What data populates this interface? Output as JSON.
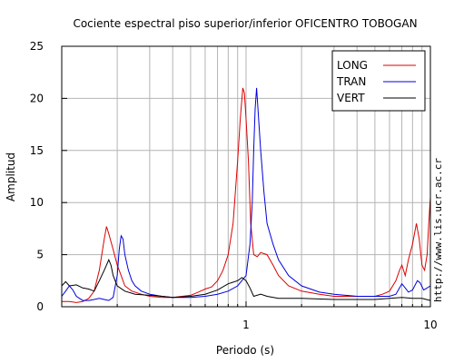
{
  "chart_data": {
    "type": "line",
    "title": "Cociente espectral piso superior/inferior OFICENTRO TOBOGAN",
    "xlabel": "Periodo (s)",
    "ylabel": "Amplitud",
    "x_scale": "log",
    "xlim": [
      0.1,
      10
    ],
    "ylim": [
      0,
      25
    ],
    "x_ticks": [
      1,
      10
    ],
    "x_tick_labels": [
      "1",
      "10"
    ],
    "y_ticks": [
      0,
      5,
      10,
      15,
      20,
      25
    ],
    "y_tick_labels": [
      "0",
      "5",
      "10",
      "15",
      "20",
      "25"
    ],
    "grid": true,
    "legend_position": "top-right",
    "series": [
      {
        "name": "LONG",
        "color": "#dd0000",
        "points": [
          [
            0.1,
            0.5
          ],
          [
            0.11,
            0.5
          ],
          [
            0.12,
            0.4
          ],
          [
            0.13,
            0.5
          ],
          [
            0.14,
            0.8
          ],
          [
            0.15,
            1.5
          ],
          [
            0.16,
            3.5
          ],
          [
            0.17,
            6.5
          ],
          [
            0.175,
            7.7
          ],
          [
            0.18,
            7.0
          ],
          [
            0.19,
            5.5
          ],
          [
            0.2,
            4.0
          ],
          [
            0.21,
            3.0
          ],
          [
            0.22,
            2.0
          ],
          [
            0.24,
            1.5
          ],
          [
            0.27,
            1.2
          ],
          [
            0.3,
            1.0
          ],
          [
            0.35,
            0.9
          ],
          [
            0.4,
            0.9
          ],
          [
            0.45,
            1.0
          ],
          [
            0.5,
            1.1
          ],
          [
            0.55,
            1.4
          ],
          [
            0.6,
            1.7
          ],
          [
            0.65,
            1.9
          ],
          [
            0.7,
            2.5
          ],
          [
            0.75,
            3.5
          ],
          [
            0.8,
            5.0
          ],
          [
            0.85,
            8.0
          ],
          [
            0.9,
            14.0
          ],
          [
            0.93,
            18.0
          ],
          [
            0.96,
            21.0
          ],
          [
            0.98,
            20.5
          ],
          [
            1.0,
            18.0
          ],
          [
            1.03,
            14.0
          ],
          [
            1.06,
            8.0
          ],
          [
            1.1,
            5.0
          ],
          [
            1.15,
            4.8
          ],
          [
            1.2,
            5.2
          ],
          [
            1.3,
            5.0
          ],
          [
            1.4,
            4.0
          ],
          [
            1.5,
            3.0
          ],
          [
            1.7,
            2.0
          ],
          [
            2.0,
            1.5
          ],
          [
            2.5,
            1.2
          ],
          [
            3.0,
            1.0
          ],
          [
            4.0,
            1.0
          ],
          [
            5.0,
            1.0
          ],
          [
            5.5,
            1.2
          ],
          [
            6.0,
            1.5
          ],
          [
            6.5,
            2.5
          ],
          [
            6.8,
            3.5
          ],
          [
            7.0,
            4.0
          ],
          [
            7.3,
            3.0
          ],
          [
            7.6,
            4.5
          ],
          [
            8.0,
            6.0
          ],
          [
            8.4,
            8.0
          ],
          [
            8.7,
            6.5
          ],
          [
            9.0,
            4.0
          ],
          [
            9.3,
            3.5
          ],
          [
            9.6,
            5.0
          ],
          [
            9.8,
            8.0
          ],
          [
            10.0,
            10.5
          ]
        ]
      },
      {
        "name": "TRAN",
        "color": "#0000dd",
        "points": [
          [
            0.1,
            1.0
          ],
          [
            0.105,
            1.5
          ],
          [
            0.11,
            2.0
          ],
          [
            0.115,
            1.6
          ],
          [
            0.12,
            1.0
          ],
          [
            0.13,
            0.6
          ],
          [
            0.14,
            0.6
          ],
          [
            0.15,
            0.7
          ],
          [
            0.16,
            0.8
          ],
          [
            0.17,
            0.7
          ],
          [
            0.18,
            0.6
          ],
          [
            0.19,
            0.9
          ],
          [
            0.2,
            3.0
          ],
          [
            0.205,
            5.5
          ],
          [
            0.21,
            6.8
          ],
          [
            0.215,
            6.5
          ],
          [
            0.22,
            5.0
          ],
          [
            0.23,
            3.5
          ],
          [
            0.24,
            2.5
          ],
          [
            0.25,
            2.0
          ],
          [
            0.27,
            1.5
          ],
          [
            0.3,
            1.2
          ],
          [
            0.35,
            1.0
          ],
          [
            0.4,
            0.9
          ],
          [
            0.5,
            0.9
          ],
          [
            0.6,
            1.0
          ],
          [
            0.7,
            1.2
          ],
          [
            0.8,
            1.5
          ],
          [
            0.9,
            2.0
          ],
          [
            1.0,
            3.0
          ],
          [
            1.05,
            6.0
          ],
          [
            1.08,
            10.0
          ],
          [
            1.1,
            15.0
          ],
          [
            1.12,
            19.0
          ],
          [
            1.14,
            21.0
          ],
          [
            1.16,
            19.0
          ],
          [
            1.2,
            15.0
          ],
          [
            1.25,
            11.0
          ],
          [
            1.3,
            8.0
          ],
          [
            1.4,
            6.0
          ],
          [
            1.5,
            4.5
          ],
          [
            1.7,
            3.0
          ],
          [
            2.0,
            2.0
          ],
          [
            2.5,
            1.4
          ],
          [
            3.0,
            1.2
          ],
          [
            4.0,
            1.0
          ],
          [
            5.0,
            1.0
          ],
          [
            6.0,
            1.0
          ],
          [
            6.5,
            1.2
          ],
          [
            7.0,
            2.2
          ],
          [
            7.3,
            1.8
          ],
          [
            7.6,
            1.4
          ],
          [
            8.0,
            1.6
          ],
          [
            8.5,
            2.5
          ],
          [
            8.8,
            2.3
          ],
          [
            9.2,
            1.6
          ],
          [
            9.6,
            1.8
          ],
          [
            10.0,
            2.0
          ]
        ]
      },
      {
        "name": "VERT",
        "color": "#000000",
        "points": [
          [
            0.1,
            2.0
          ],
          [
            0.105,
            2.4
          ],
          [
            0.11,
            2.0
          ],
          [
            0.12,
            2.1
          ],
          [
            0.13,
            1.8
          ],
          [
            0.14,
            1.7
          ],
          [
            0.15,
            1.5
          ],
          [
            0.16,
            2.5
          ],
          [
            0.17,
            3.5
          ],
          [
            0.175,
            4.0
          ],
          [
            0.18,
            4.5
          ],
          [
            0.185,
            4.0
          ],
          [
            0.19,
            3.0
          ],
          [
            0.2,
            2.0
          ],
          [
            0.22,
            1.5
          ],
          [
            0.25,
            1.2
          ],
          [
            0.3,
            1.1
          ],
          [
            0.35,
            1.0
          ],
          [
            0.4,
            0.9
          ],
          [
            0.5,
            1.0
          ],
          [
            0.6,
            1.2
          ],
          [
            0.7,
            1.6
          ],
          [
            0.8,
            2.2
          ],
          [
            0.9,
            2.5
          ],
          [
            0.95,
            2.8
          ],
          [
            1.0,
            2.5
          ],
          [
            1.05,
            1.8
          ],
          [
            1.1,
            1.0
          ],
          [
            1.2,
            1.2
          ],
          [
            1.3,
            1.0
          ],
          [
            1.5,
            0.8
          ],
          [
            2.0,
            0.8
          ],
          [
            3.0,
            0.7
          ],
          [
            4.0,
            0.7
          ],
          [
            5.0,
            0.7
          ],
          [
            6.0,
            0.8
          ],
          [
            7.0,
            0.9
          ],
          [
            8.0,
            0.8
          ],
          [
            9.0,
            0.8
          ],
          [
            10.0,
            0.6
          ]
        ]
      }
    ]
  },
  "side_text": "http://www.lis.ucr.ac.cr"
}
